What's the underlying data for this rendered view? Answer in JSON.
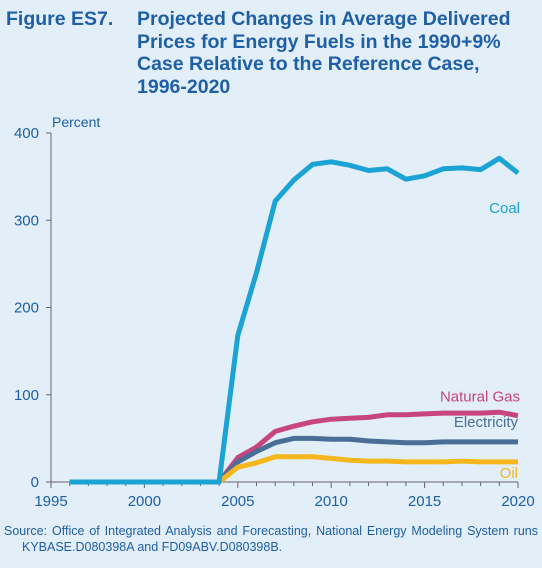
{
  "figure": {
    "number": "Figure ES7.",
    "title": "Projected Changes in Average Delivered Prices for Energy Fuels in the 1990+9% Case Relative to the Reference Case, 1996-2020"
  },
  "source": "Source: Office of Integrated Analysis and Forecasting, National Energy Modeling System runs KYBASE.D080398A and FD09ABV.D080398B.",
  "colors": {
    "background": "#e2eef8",
    "text": "#1f5fa5",
    "axis": "#666666",
    "coal": "#1aa3d4",
    "natural_gas": "#c8467e",
    "electricity": "#4a6f96",
    "oil": "#f5b71c"
  },
  "chart_data": {
    "type": "line",
    "title": "Projected Changes in Average Delivered Prices for Energy Fuels in the 1990+9% Case Relative to the Reference Case, 1996-2020",
    "ylabel": "Percent",
    "xlabel": "",
    "xlim": [
      1995,
      2020
    ],
    "ylim": [
      0,
      400
    ],
    "xticks": [
      1995,
      2000,
      2005,
      2010,
      2015,
      2020
    ],
    "yticks": [
      0,
      100,
      200,
      300,
      400
    ],
    "grid": false,
    "legend": "inline labels at right end of each line",
    "x": [
      1996,
      1997,
      1998,
      1999,
      2000,
      2001,
      2002,
      2003,
      2004,
      2005,
      2006,
      2007,
      2008,
      2009,
      2010,
      2011,
      2012,
      2013,
      2014,
      2015,
      2016,
      2017,
      2018,
      2019,
      2020
    ],
    "series": [
      {
        "name": "Coal",
        "color": "#1aa3d4",
        "values": [
          0,
          0,
          0,
          0,
          0,
          0,
          0,
          0,
          0,
          168,
          240,
          322,
          346,
          364,
          367,
          363,
          357,
          359,
          347,
          351,
          359,
          360,
          358,
          371,
          354
        ]
      },
      {
        "name": "Natural Gas",
        "color": "#c8467e",
        "values": [
          0,
          0,
          0,
          0,
          0,
          0,
          0,
          0,
          0,
          28,
          40,
          58,
          64,
          69,
          72,
          73,
          74,
          77,
          77,
          78,
          79,
          79,
          79,
          80,
          76
        ]
      },
      {
        "name": "Electricity",
        "color": "#4a6f96",
        "values": [
          0,
          0,
          0,
          0,
          0,
          0,
          0,
          0,
          0,
          23,
          35,
          45,
          50,
          50,
          49,
          49,
          47,
          46,
          45,
          45,
          46,
          46,
          46,
          46,
          46
        ]
      },
      {
        "name": "Oil",
        "color": "#f5b71c",
        "values": [
          0,
          0,
          0,
          0,
          0,
          0,
          0,
          0,
          0,
          17,
          22,
          29,
          29,
          29,
          27,
          25,
          24,
          24,
          23,
          23,
          23,
          24,
          23,
          23,
          23
        ]
      }
    ]
  }
}
